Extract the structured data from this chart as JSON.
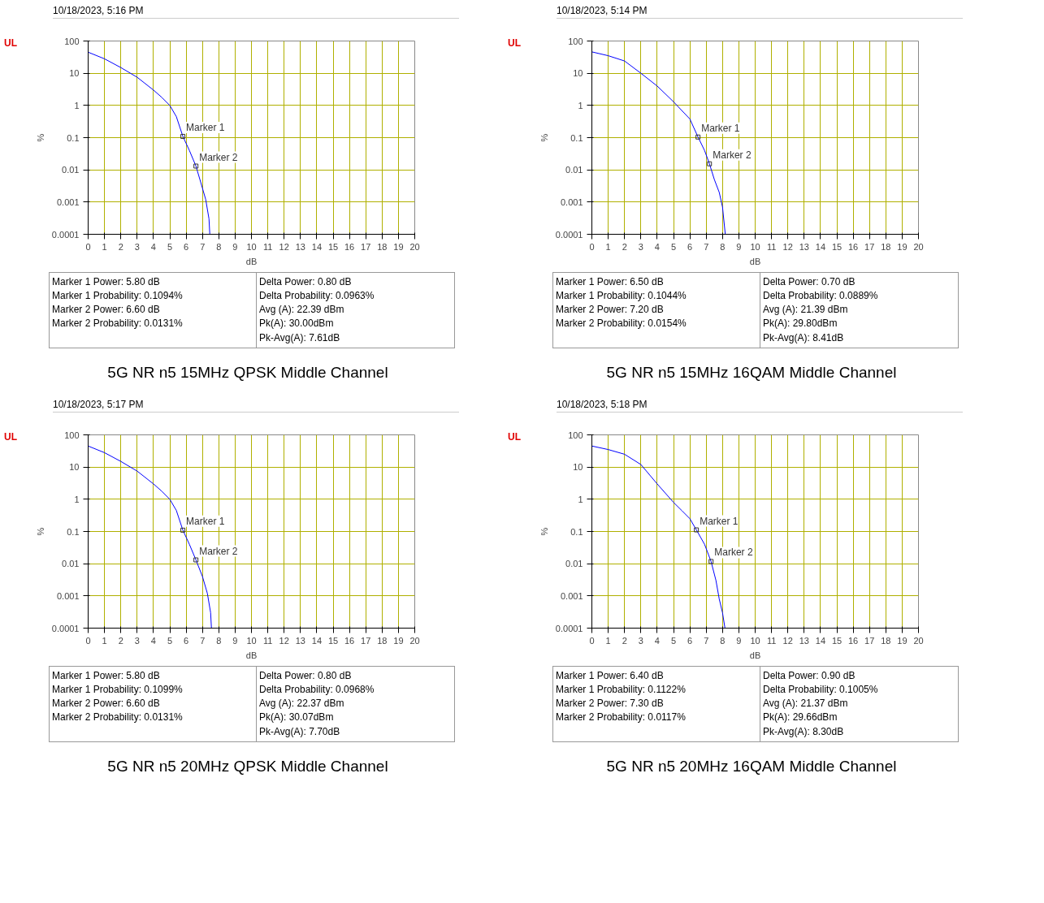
{
  "chart_data": [
    {
      "type": "line",
      "title": "5G NR n5 15MHz QPSK Middle Channel",
      "subtitle": "10/18/2023, 5:16 PM",
      "xlabel": "dB",
      "ylabel": "%",
      "log": "y",
      "grid": true,
      "marker": "none",
      "line_style": "solid",
      "xlim": [
        0,
        20
      ],
      "ylim": [
        0.0001,
        100
      ],
      "xticks": [
        0,
        1,
        2,
        3,
        4,
        5,
        6,
        7,
        8,
        9,
        10,
        11,
        12,
        13,
        14,
        15,
        16,
        17,
        18,
        19,
        20
      ],
      "yticks": [
        0.0001,
        0.001,
        0.01,
        0.1,
        1,
        10,
        100
      ],
      "x": [
        0,
        1,
        2,
        3,
        4,
        4.5,
        5,
        5.4,
        5.8,
        6.2,
        6.6,
        6.9,
        7.2,
        7.4,
        7.45
      ],
      "series": [
        {
          "color": "#0000ff",
          "values": [
            45,
            28,
            15,
            7.5,
            3,
            1.8,
            1,
            0.45,
            0.1094,
            0.04,
            0.0131,
            0.004,
            0.0012,
            0.0003,
            0.0001
          ]
        }
      ],
      "annotations": [
        "UL",
        {
          "text": "Marker 1",
          "x": 5.8,
          "y": 0.1094
        },
        {
          "text": "Marker 2",
          "x": 6.6,
          "y": 0.0131
        },
        "Marker 1 Power: 5.80 dB",
        "Marker 1 Probability: 0.1094%",
        "Marker 2 Power: 6.60 dB",
        "Marker 2 Probability: 0.0131%",
        "Delta Power: 0.80 dB",
        "Delta Probability: 0.0963%",
        "Avg (A): 22.39 dBm",
        "Pk(A): 30.00dBm",
        "Pk-Avg(A): 7.61dB"
      ]
    },
    {
      "type": "line",
      "title": "5G NR n5 15MHz 16QAM Middle Channel",
      "subtitle": "10/18/2023, 5:14 PM",
      "xlabel": "dB",
      "ylabel": "%",
      "log": "y",
      "grid": true,
      "marker": "none",
      "line_style": "solid",
      "xlim": [
        0,
        20
      ],
      "ylim": [
        0.0001,
        100
      ],
      "xticks": [
        0,
        1,
        2,
        3,
        4,
        5,
        6,
        7,
        8,
        9,
        10,
        11,
        12,
        13,
        14,
        15,
        16,
        17,
        18,
        19,
        20
      ],
      "yticks": [
        0.0001,
        0.001,
        0.01,
        0.1,
        1,
        10,
        100
      ],
      "x": [
        0,
        1,
        2,
        3,
        4,
        5,
        5.5,
        6,
        6.5,
        6.9,
        7.2,
        7.5,
        7.8,
        8,
        8.17
      ],
      "series": [
        {
          "color": "#0000ff",
          "values": [
            46,
            35,
            24,
            10,
            4,
            1.3,
            0.7,
            0.38,
            0.1044,
            0.04,
            0.0154,
            0.005,
            0.002,
            0.0007,
            0.0001
          ]
        }
      ],
      "annotations": [
        "UL",
        {
          "text": "Marker 1",
          "x": 6.5,
          "y": 0.1044
        },
        {
          "text": "Marker 2",
          "x": 7.2,
          "y": 0.0154
        },
        "Marker 1 Power: 6.50 dB",
        "Marker 1 Probability: 0.1044%",
        "Marker 2 Power: 7.20 dB",
        "Marker 2 Probability: 0.0154%",
        "Delta Power: 0.70 dB",
        "Delta Probability: 0.0889%",
        "Avg (A): 21.39 dBm",
        "Pk(A): 29.80dBm",
        "Pk-Avg(A): 8.41dB"
      ]
    },
    {
      "type": "line",
      "title": "5G NR n5 20MHz QPSK Middle Channel",
      "subtitle": "10/18/2023, 5:17 PM",
      "xlabel": "dB",
      "ylabel": "%",
      "log": "y",
      "grid": true,
      "marker": "none",
      "line_style": "solid",
      "xlim": [
        0,
        20
      ],
      "ylim": [
        0.0001,
        100
      ],
      "xticks": [
        0,
        1,
        2,
        3,
        4,
        5,
        6,
        7,
        8,
        9,
        10,
        11,
        12,
        13,
        14,
        15,
        16,
        17,
        18,
        19,
        20
      ],
      "yticks": [
        0.0001,
        0.001,
        0.01,
        0.1,
        1,
        10,
        100
      ],
      "x": [
        0,
        1,
        2,
        3,
        4,
        4.5,
        5,
        5.4,
        5.8,
        6.2,
        6.6,
        7,
        7.3,
        7.5,
        7.55
      ],
      "series": [
        {
          "color": "#0000ff",
          "values": [
            45,
            28,
            15,
            7.5,
            3,
            1.8,
            1,
            0.45,
            0.1099,
            0.04,
            0.0131,
            0.004,
            0.0012,
            0.0003,
            0.0001
          ]
        }
      ],
      "annotations": [
        "UL",
        {
          "text": "Marker 1",
          "x": 5.8,
          "y": 0.1099
        },
        {
          "text": "Marker 2",
          "x": 6.6,
          "y": 0.0131
        },
        "Marker 1 Power: 5.80 dB",
        "Marker 1 Probability: 0.1099%",
        "Marker 2 Power: 6.60 dB",
        "Marker 2 Probability: 0.0131%",
        "Delta Power: 0.80 dB",
        "Delta Probability: 0.0968%",
        "Avg (A): 22.37 dBm",
        "Pk(A): 30.07dBm",
        "Pk-Avg(A): 7.70dB"
      ]
    },
    {
      "type": "line",
      "title": "5G NR n5 20MHz 16QAM Middle Channel",
      "subtitle": "10/18/2023, 5:18 PM",
      "xlabel": "dB",
      "ylabel": "%",
      "log": "y",
      "grid": true,
      "marker": "none",
      "line_style": "solid",
      "xlim": [
        0,
        20
      ],
      "ylim": [
        0.0001,
        100
      ],
      "xticks": [
        0,
        1,
        2,
        3,
        4,
        5,
        6,
        7,
        8,
        9,
        10,
        11,
        12,
        13,
        14,
        15,
        16,
        17,
        18,
        19,
        20
      ],
      "yticks": [
        0.0001,
        0.001,
        0.01,
        0.1,
        1,
        10,
        100
      ],
      "x": [
        0,
        1,
        2,
        3,
        4,
        5,
        5.5,
        6,
        6.4,
        6.9,
        7.3,
        7.6,
        7.8,
        8,
        8.15
      ],
      "series": [
        {
          "color": "#0000ff",
          "values": [
            45,
            35,
            25,
            12,
            3,
            0.8,
            0.45,
            0.25,
            0.1122,
            0.04,
            0.0117,
            0.003,
            0.0008,
            0.0003,
            0.0001
          ]
        }
      ],
      "annotations": [
        "UL",
        {
          "text": "Marker 1",
          "x": 6.4,
          "y": 0.1122
        },
        {
          "text": "Marker 2",
          "x": 7.3,
          "y": 0.0117
        },
        "Marker 1 Power: 6.40 dB",
        "Marker 1 Probability: 0.1122%",
        "Marker 2 Power: 7.30 dB",
        "Marker 2 Probability: 0.0117%",
        "Delta Power: 0.90 dB",
        "Delta Probability: 0.1005%",
        "Avg (A): 21.37 dBm",
        "Pk(A): 29.66dBm",
        "Pk-Avg(A): 8.30dB"
      ]
    }
  ]
}
